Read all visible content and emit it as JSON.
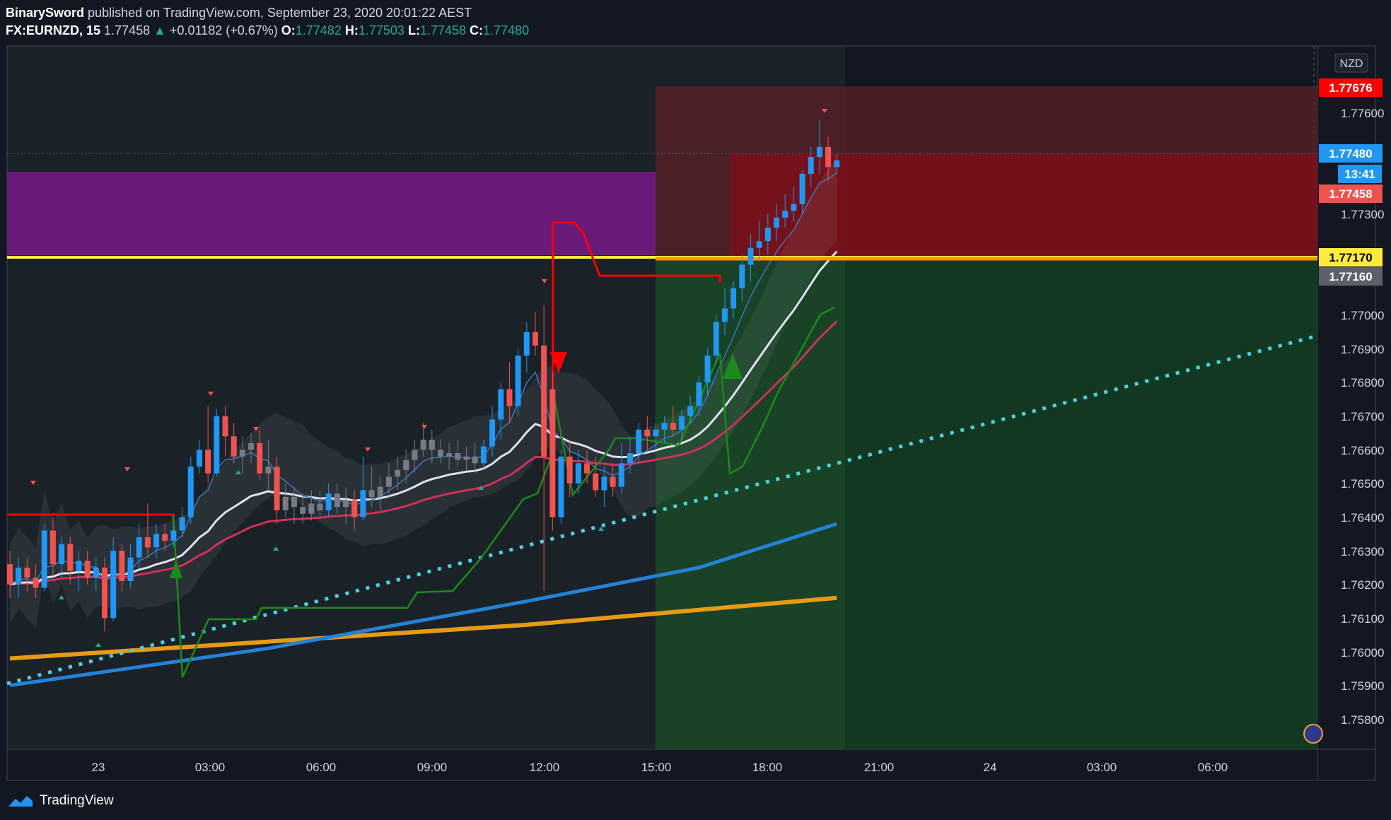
{
  "header": {
    "author": "BinarySword",
    "published": "published on TradingView.com, September 23, 2020 20:01:22 AEST",
    "symbol": "FX:EURNZD, 15",
    "last": "1.77458",
    "arrow": "▲",
    "change": "+0.01182 (+0.67%)",
    "o_label": "O:",
    "o_val": "1.77482",
    "h_label": "H:",
    "h_val": "1.77503",
    "l_label": "L:",
    "l_val": "1.77458",
    "c_label": "C:",
    "c_val": "1.77480"
  },
  "footer": {
    "brand": "TradingView"
  },
  "colors": {
    "bg": "#131722",
    "up": "#2196f3",
    "down": "#ef5350",
    "grey": "#787b86",
    "yellow": "#ffeb3b",
    "purple": "#6a1b7a",
    "cyan": "#4dd0e1",
    "ema_orange": "#e69a16",
    "ema_blue": "#2482d6",
    "ema_white": "#e0e0f0",
    "ema_red": "#d0305a"
  },
  "chart_data": {
    "type": "candlestick",
    "currency": "NZD",
    "ylim": [
      1.7573,
      1.7782
    ],
    "x_ticks": [
      "23",
      "03:00",
      "06:00",
      "09:00",
      "12:00",
      "15:00",
      "18:00",
      "21:00",
      "24",
      "03:00",
      "06:00"
    ],
    "y_ticks": [
      "1.77600",
      "1.77300",
      "1.77000",
      "1.76900",
      "1.76800",
      "1.76700",
      "1.76600",
      "1.76500",
      "1.76400",
      "1.76300",
      "1.76200",
      "1.76100",
      "1.76000",
      "1.75900",
      "1.75800"
    ],
    "price_labels": [
      {
        "value": "1.77676",
        "color": "#ff0000",
        "text_color": "#ffffff"
      },
      {
        "value": "1.77480",
        "color": "#2196f3",
        "text_color": "#ffffff"
      },
      {
        "value": "13:41",
        "color": "#2196f3",
        "text_color": "#ffffff"
      },
      {
        "value": "1.77458",
        "color": "#ef5350",
        "text_color": "#ffffff"
      },
      {
        "value": "1.77170",
        "color": "#ffeb3b",
        "text_color": "#000000"
      },
      {
        "value": "1.77160",
        "color": "#5d606b",
        "text_color": "#ffffff"
      }
    ],
    "candles_ohlc": [
      [
        1.7628,
        1.7632,
        1.7618,
        1.7622
      ],
      [
        1.7622,
        1.763,
        1.7618,
        1.7627
      ],
      [
        1.7627,
        1.763,
        1.762,
        1.7624
      ],
      [
        1.7624,
        1.7628,
        1.7618,
        1.7621
      ],
      [
        1.7621,
        1.764,
        1.762,
        1.7638
      ],
      [
        1.7638,
        1.7642,
        1.7625,
        1.7628
      ],
      [
        1.7628,
        1.7636,
        1.7624,
        1.7634
      ],
      [
        1.7634,
        1.7636,
        1.7622,
        1.7626
      ],
      [
        1.7626,
        1.7632,
        1.762,
        1.7629
      ],
      [
        1.7629,
        1.7632,
        1.7622,
        1.7624
      ],
      [
        1.7624,
        1.763,
        1.762,
        1.7627
      ],
      [
        1.7627,
        1.763,
        1.7608,
        1.7612
      ],
      [
        1.7612,
        1.7636,
        1.7611,
        1.7632
      ],
      [
        1.7632,
        1.7634,
        1.762,
        1.7623
      ],
      [
        1.7623,
        1.7634,
        1.7621,
        1.763
      ],
      [
        1.763,
        1.764,
        1.7627,
        1.7636
      ],
      [
        1.7636,
        1.7646,
        1.763,
        1.7633
      ],
      [
        1.7633,
        1.764,
        1.763,
        1.7637
      ],
      [
        1.7637,
        1.764,
        1.7632,
        1.7635
      ],
      [
        1.7635,
        1.764,
        1.7633,
        1.7638
      ],
      [
        1.7638,
        1.7645,
        1.7636,
        1.7642
      ],
      [
        1.7642,
        1.766,
        1.764,
        1.7657
      ],
      [
        1.7657,
        1.7665,
        1.7655,
        1.7662
      ],
      [
        1.7662,
        1.7675,
        1.7652,
        1.7655
      ],
      [
        1.7655,
        1.7674,
        1.7654,
        1.7672
      ],
      [
        1.7672,
        1.7675,
        1.766,
        1.7666
      ],
      [
        1.7666,
        1.767,
        1.7658,
        1.766
      ],
      [
        1.766,
        1.7666,
        1.7655,
        1.7662
      ],
      [
        1.7662,
        1.7667,
        1.7658,
        1.7664
      ],
      [
        1.7664,
        1.7668,
        1.7653,
        1.7655
      ],
      [
        1.7655,
        1.7665,
        1.765,
        1.7657
      ],
      [
        1.7657,
        1.766,
        1.764,
        1.7644
      ],
      [
        1.7644,
        1.7652,
        1.7642,
        1.7648
      ],
      [
        1.7648,
        1.7651,
        1.764,
        1.7645
      ],
      [
        1.7645,
        1.7649,
        1.764,
        1.7643
      ],
      [
        1.7643,
        1.765,
        1.7641,
        1.7646
      ],
      [
        1.7646,
        1.765,
        1.7642,
        1.7644
      ],
      [
        1.7644,
        1.7652,
        1.7642,
        1.7649
      ],
      [
        1.7649,
        1.7652,
        1.7643,
        1.7645
      ],
      [
        1.7645,
        1.7651,
        1.764,
        1.7647
      ],
      [
        1.7647,
        1.765,
        1.7638,
        1.7642
      ],
      [
        1.7642,
        1.766,
        1.7641,
        1.765
      ],
      [
        1.765,
        1.7657,
        1.7645,
        1.7648
      ],
      [
        1.7648,
        1.7654,
        1.7644,
        1.7651
      ],
      [
        1.7651,
        1.7658,
        1.7648,
        1.7654
      ],
      [
        1.7654,
        1.766,
        1.765,
        1.7656
      ],
      [
        1.7656,
        1.7662,
        1.7652,
        1.7659
      ],
      [
        1.7659,
        1.7665,
        1.7655,
        1.7662
      ],
      [
        1.7662,
        1.767,
        1.766,
        1.7665
      ],
      [
        1.7665,
        1.7668,
        1.7658,
        1.7662
      ],
      [
        1.7662,
        1.7665,
        1.7658,
        1.766
      ],
      [
        1.766,
        1.7664,
        1.7656,
        1.7661
      ],
      [
        1.7661,
        1.7665,
        1.7657,
        1.7659
      ],
      [
        1.7659,
        1.7663,
        1.7656,
        1.766
      ],
      [
        1.766,
        1.7664,
        1.7655,
        1.7658
      ],
      [
        1.7658,
        1.7665,
        1.7656,
        1.7663
      ],
      [
        1.7663,
        1.7675,
        1.766,
        1.7671
      ],
      [
        1.7671,
        1.7682,
        1.7665,
        1.768
      ],
      [
        1.768,
        1.7688,
        1.767,
        1.7675
      ],
      [
        1.7675,
        1.7692,
        1.7672,
        1.769
      ],
      [
        1.769,
        1.77,
        1.7685,
        1.7697
      ],
      [
        1.7697,
        1.7703,
        1.769,
        1.7693
      ],
      [
        1.7693,
        1.7705,
        1.762,
        1.766
      ],
      [
        1.768,
        1.7685,
        1.7638,
        1.7642
      ],
      [
        1.7642,
        1.7662,
        1.764,
        1.766
      ],
      [
        1.766,
        1.7665,
        1.7648,
        1.7652
      ],
      [
        1.7652,
        1.7662,
        1.7649,
        1.7658
      ],
      [
        1.7658,
        1.7662,
        1.7652,
        1.7655
      ],
      [
        1.7655,
        1.766,
        1.7648,
        1.765
      ],
      [
        1.765,
        1.7657,
        1.7645,
        1.7654
      ],
      [
        1.7654,
        1.7658,
        1.7648,
        1.7651
      ],
      [
        1.7651,
        1.7664,
        1.7649,
        1.7658
      ],
      [
        1.7658,
        1.7666,
        1.7655,
        1.7661
      ],
      [
        1.7661,
        1.767,
        1.7658,
        1.7668
      ],
      [
        1.7668,
        1.7672,
        1.7662,
        1.7666
      ],
      [
        1.7666,
        1.767,
        1.7662,
        1.7668
      ],
      [
        1.7668,
        1.7672,
        1.7664,
        1.767
      ],
      [
        1.767,
        1.7675,
        1.7666,
        1.7668
      ],
      [
        1.7668,
        1.7674,
        1.7665,
        1.7672
      ],
      [
        1.7672,
        1.7678,
        1.767,
        1.7675
      ],
      [
        1.7675,
        1.7684,
        1.7672,
        1.7682
      ],
      [
        1.7682,
        1.7692,
        1.7678,
        1.769
      ],
      [
        1.769,
        1.7702,
        1.7688,
        1.77
      ],
      [
        1.77,
        1.771,
        1.7696,
        1.7704
      ],
      [
        1.7704,
        1.7712,
        1.7701,
        1.771
      ],
      [
        1.771,
        1.772,
        1.7706,
        1.7717
      ],
      [
        1.7717,
        1.7726,
        1.7712,
        1.7722
      ],
      [
        1.7722,
        1.773,
        1.7718,
        1.7724
      ],
      [
        1.7724,
        1.7732,
        1.772,
        1.7728
      ],
      [
        1.7728,
        1.7735,
        1.7724,
        1.7731
      ],
      [
        1.7731,
        1.7738,
        1.7728,
        1.7733
      ],
      [
        1.7733,
        1.774,
        1.773,
        1.7735
      ],
      [
        1.7735,
        1.7745,
        1.7732,
        1.7744
      ],
      [
        1.7744,
        1.7752,
        1.774,
        1.7749
      ],
      [
        1.7749,
        1.776,
        1.7744,
        1.7752
      ],
      [
        1.7752,
        1.7755,
        1.7742,
        1.7746
      ],
      [
        1.7746,
        1.775,
        1.7744,
        1.7748
      ]
    ],
    "ema_orange": [
      [
        0,
        1.76
      ],
      [
        60,
        1.761
      ],
      [
        96,
        1.7618
      ]
    ],
    "ema_blue": [
      [
        0,
        1.7592
      ],
      [
        30,
        1.7603
      ],
      [
        60,
        1.7617
      ],
      [
        80,
        1.7627
      ],
      [
        96,
        1.764
      ]
    ]
  }
}
